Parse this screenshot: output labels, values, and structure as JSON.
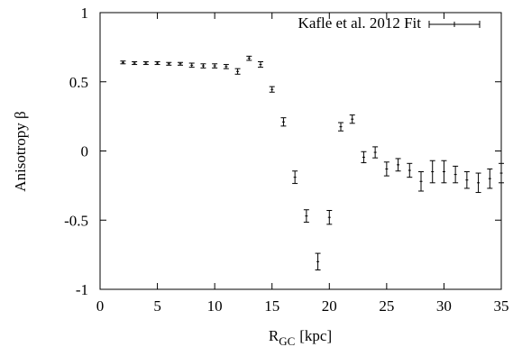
{
  "chart_data": {
    "type": "scatter",
    "xlabel": "R",
    "xlabel_subscript": "GC",
    "xlabel_unit": "[kpc]",
    "ylabel": "Anisotropy β",
    "xlim": [
      0,
      35
    ],
    "ylim": [
      -1,
      1
    ],
    "x_ticks": [
      0,
      5,
      10,
      15,
      20,
      25,
      30,
      35
    ],
    "y_ticks": [
      -1,
      -0.5,
      0,
      0.5,
      1
    ],
    "x_tick_labels": [
      "0",
      "5",
      "10",
      "15",
      "20",
      "25",
      "30",
      "35"
    ],
    "y_tick_labels": [
      "-1",
      "-0.5",
      "0",
      "0.5",
      "1"
    ],
    "grid": false,
    "legend_position": "top-right",
    "series": [
      {
        "name": "Kafle et al. 2012 Fit",
        "marker": "errorbar",
        "color": "#000000",
        "points": [
          {
            "x": 2,
            "y": 0.64,
            "err": 0.01
          },
          {
            "x": 3,
            "y": 0.635,
            "err": 0.01
          },
          {
            "x": 4,
            "y": 0.635,
            "err": 0.01
          },
          {
            "x": 5,
            "y": 0.635,
            "err": 0.01
          },
          {
            "x": 6,
            "y": 0.63,
            "err": 0.01
          },
          {
            "x": 7,
            "y": 0.63,
            "err": 0.01
          },
          {
            "x": 8,
            "y": 0.62,
            "err": 0.015
          },
          {
            "x": 9,
            "y": 0.615,
            "err": 0.015
          },
          {
            "x": 10,
            "y": 0.615,
            "err": 0.015
          },
          {
            "x": 11,
            "y": 0.61,
            "err": 0.015
          },
          {
            "x": 12,
            "y": 0.575,
            "err": 0.02
          },
          {
            "x": 13,
            "y": 0.67,
            "err": 0.015
          },
          {
            "x": 14,
            "y": 0.625,
            "err": 0.02
          },
          {
            "x": 15,
            "y": 0.445,
            "err": 0.02
          },
          {
            "x": 16,
            "y": 0.21,
            "err": 0.03
          },
          {
            "x": 17,
            "y": -0.19,
            "err": 0.045
          },
          {
            "x": 18,
            "y": -0.47,
            "err": 0.045
          },
          {
            "x": 19,
            "y": -0.8,
            "err": 0.06
          },
          {
            "x": 20,
            "y": -0.48,
            "err": 0.05
          },
          {
            "x": 21,
            "y": 0.175,
            "err": 0.03
          },
          {
            "x": 22,
            "y": 0.23,
            "err": 0.03
          },
          {
            "x": 23,
            "y": -0.045,
            "err": 0.04
          },
          {
            "x": 24,
            "y": -0.01,
            "err": 0.04
          },
          {
            "x": 25,
            "y": -0.13,
            "err": 0.05
          },
          {
            "x": 26,
            "y": -0.1,
            "err": 0.045
          },
          {
            "x": 27,
            "y": -0.14,
            "err": 0.05
          },
          {
            "x": 28,
            "y": -0.22,
            "err": 0.07
          },
          {
            "x": 29,
            "y": -0.15,
            "err": 0.08
          },
          {
            "x": 30,
            "y": -0.15,
            "err": 0.08
          },
          {
            "x": 31,
            "y": -0.17,
            "err": 0.06
          },
          {
            "x": 32,
            "y": -0.21,
            "err": 0.06
          },
          {
            "x": 33,
            "y": -0.23,
            "err": 0.07
          },
          {
            "x": 34,
            "y": -0.2,
            "err": 0.07
          },
          {
            "x": 35,
            "y": -0.16,
            "err": 0.07
          }
        ]
      }
    ]
  }
}
